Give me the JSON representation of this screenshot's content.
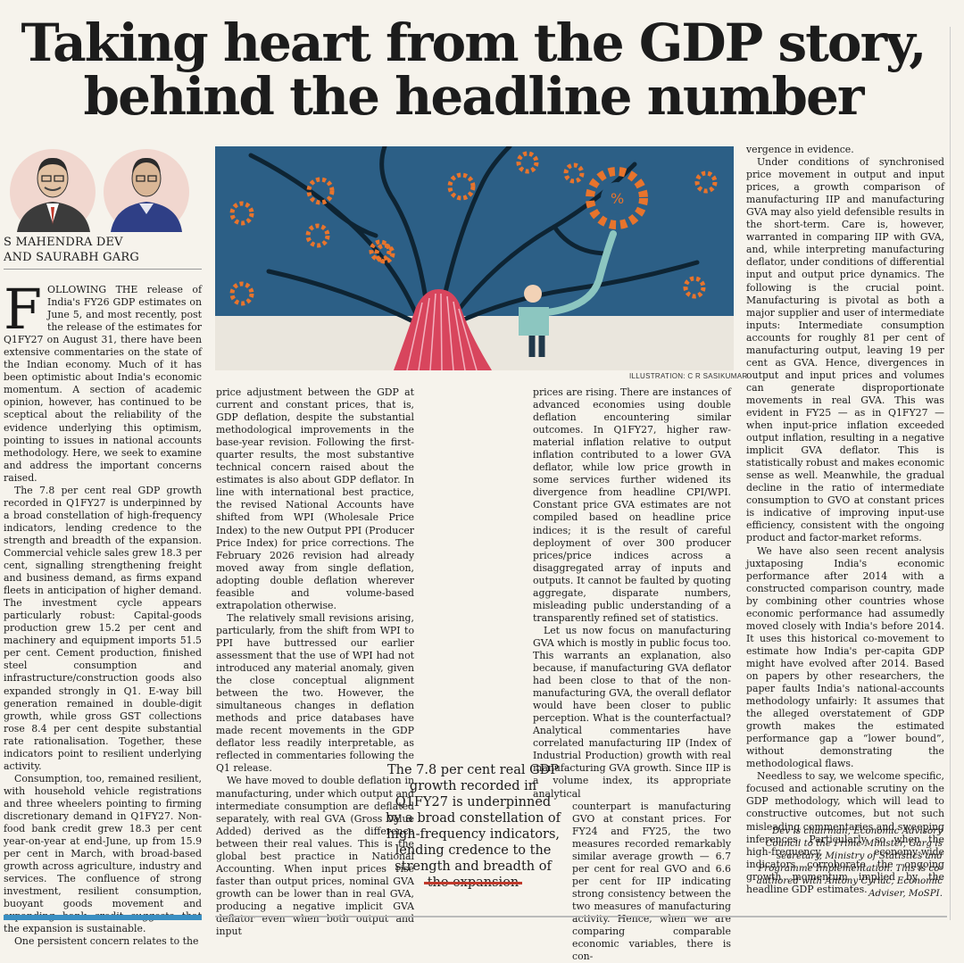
{
  "headline": {
    "line1": "Taking heart from the GDP story,",
    "line2": "behind the headline number"
  },
  "byline": {
    "line1": "S MAHENDRA DEV",
    "line2": "AND SAURABH GARG"
  },
  "illustration_credit": "ILLUSTRATION: C R SASIKUMAR",
  "dropcap": "F",
  "col1": {
    "p1": "OLLOWING THE release of India's FY26 GDP estimates on June 5, and most recently, post the release of the estimates for Q1FY27 on August 31, there have been extensive commentaries on the state of the Indian economy. Much of it has been optimistic about India's economic momentum. A section of academic opinion, however, has continued to be sceptical about the reliability of the evidence underlying this optimism, pointing to issues in national accounts methodology. Here, we seek to examine and address the important concerns raised.",
    "p2": "The 7.8 per cent real GDP growth recorded in Q1FY27 is underpinned by a broad constellation of high-frequency indicators, lending credence to the strength and breadth of the expansion. Commercial vehicle sales grew 18.3 per cent, signalling strengthening freight and business demand, as firms expand fleets in anticipation of higher demand. The investment cycle appears particularly robust: Capital-goods production grew 15.2 per cent and machinery and equipment imports 51.5 per cent. Cement production, finished steel consumption and infrastructure/construction goods also expanded strongly in Q1. E-way bill generation remained in double-digit growth, while gross GST collections rose 8.4 per cent despite substantial rate rationalisation. Together, these indicators point to resilient underlying activity.",
    "p3": "Consumption, too, remained resilient, with household vehicle registrations and three wheelers pointing to firming discretionary demand in Q1FY27. Non-food bank credit grew 18.3 per cent year-on-year at end-June, up from 15.9 per cent in March, with broad-based growth across agriculture, industry and services. The confluence of strong investment, resilient consumption, buoyant goods movement and expanding bank credit suggests that the expansion is sustainable.",
    "p4": "One persistent concern relates to the"
  },
  "col2": {
    "p1": "price adjustment between the GDP at current and constant prices, that is, GDP deflation, despite the substantial methodological improvements in the base-year revision. Following the first-quarter results, the most substantive technical concern raised about the estimates is also about GDP deflator. In line with international best practice, the revised National Accounts have shifted from WPI (Wholesale Price Index) to the new Output PPI (Producer Price Index) for price corrections. The February 2026 revision had already moved away from single deflation, adopting double deflation wherever feasible and volume-based extrapolation otherwise.",
    "p2": "The relatively small revisions arising, particularly, from the shift from WPI to PPI have buttressed our earlier assessment that the use of WPI had not introduced any material anomaly, given the close conceptual alignment between the two. However, the simultaneous changes in deflation methods and price databases have made recent movements in the GDP deflator less readily interpretable, as reflected in commentaries following the Q1 release.",
    "p3": "We have moved to double deflation in manufacturing, under which output and intermediate consumption are deflated separately, with real GVA (Gross Value Added) derived as the difference between their real values. This is the global best practice in National Accounting. When input prices rise faster than output prices, nominal GVA growth can be lower than in real GVA, producing a negative implicit GVA deflator even when both output and input"
  },
  "col3": {
    "p1": "prices are rising. There are instances of advanced economies using double deflation encountering similar outcomes. In Q1FY27, higher raw-material inflation relative to output inflation contributed to a lower GVA deflator, while low price growth in some services further widened its divergence from headline CPI/WPI. Constant price GVA estimates are not compiled based on headline price indices; it is the result of careful deployment of over 300 producer prices/price indices across a disaggregated array of inputs and outputs. It cannot be faulted by quoting aggregate, disparate numbers, misleading public understanding of a transparently refined set of statistics.",
    "p2a": "Let us now focus on manufacturing GVA which is mostly in public focus too. This warrants an explanation, also because, if manufacturing GVA deflator had been close to that of the non-manufacturing GVA, the overall deflator would have been closer to public perception. What is the counterfactual? Analytical commentaries have correlated manufacturing IIP (Index of Industrial Production) growth with real manufacturing GVA growth. Since IIP is a volume index, its appropriate analytical",
    "p2b": "counterpart is manufacturing GVO at constant prices. For FY24 and FY25, the two measures recorded remarkably similar average growth — 6.7 per cent for real GVO and 6.6 per cent for IIP indicating strong consistency between the two measures of manufacturing activity. Hence, when we are comparing comparable economic variables, there is con-"
  },
  "col4": {
    "p1": "vergence in evidence.",
    "p2": "Under conditions of synchronised price movement in output and input prices, a growth comparison of manufacturing IIP and manufacturing GVA may also yield defensible results in the short-term. Care is, however, warranted in comparing IIP with GVA, and, while interpreting manufacturing deflator, under conditions of differential input and output price dynamics. The following is the crucial point. Manufacturing is pivotal as both a major supplier and user of intermediate inputs: Intermediate consumption accounts for roughly 81 per cent of manufacturing output, leaving 19 per cent as GVA. Hence, divergences in output and input prices and volumes can generate disproportionate movements in real GVA. This was evident in FY25 — as in Q1FY27 — when input-price inflation exceeded output inflation, resulting in a negative implicit GVA deflator. This is statistically robust and makes economic sense as well. Meanwhile, the gradual decline in the ratio of intermediate consumption to GVO at constant prices is indicative of improving input-use efficiency, consistent with the ongoing product and factor-market reforms.",
    "p3": "We have also seen recent analysis juxtaposing India's economic performance after 2014 with a constructed comparison country, made by combining other countries whose economic performance had assumedly moved closely with India's before 2014. It uses this historical co-movement to estimate how India's per-capita GDP might have evolved after 2014. Based on papers by other researchers, the paper faults India's national-accounts methodology unfairly: It assumes that the alleged overstatement of GDP growth makes the estimated performance gap a “lower bound”, without demonstrating the methodological flaws.",
    "p4": "Needless to say, we welcome specific, focused and actionable scrutiny on the GDP methodology, which will lead to constructive outcomes, but not such misleading commentaries and sweeping inferences. Particularly so when the high-frequency, economy-wide indicators corroborate the ongoing growth momentum implied by the headline GDP estimates."
  },
  "pullquote": "The 7.8 per cent real GDP growth recorded in Q1FY27 is underpinned by a broad constellation of high-frequency indicators, lending credence to the strength and breadth of the expansion",
  "bio": "Dev is chairman, Economic Advisory Council to the Prime Minister, Garg is secretary, Ministry of Statistics and Programme Implementation. This is co-authored with Antony Cyriac, Economic Adviser, MoSPI.",
  "colors": {
    "illustration_sky": "#2c5f86",
    "trunk": "#d8455d",
    "gear": "#e8742c",
    "accent_rule": "#c0392b"
  }
}
